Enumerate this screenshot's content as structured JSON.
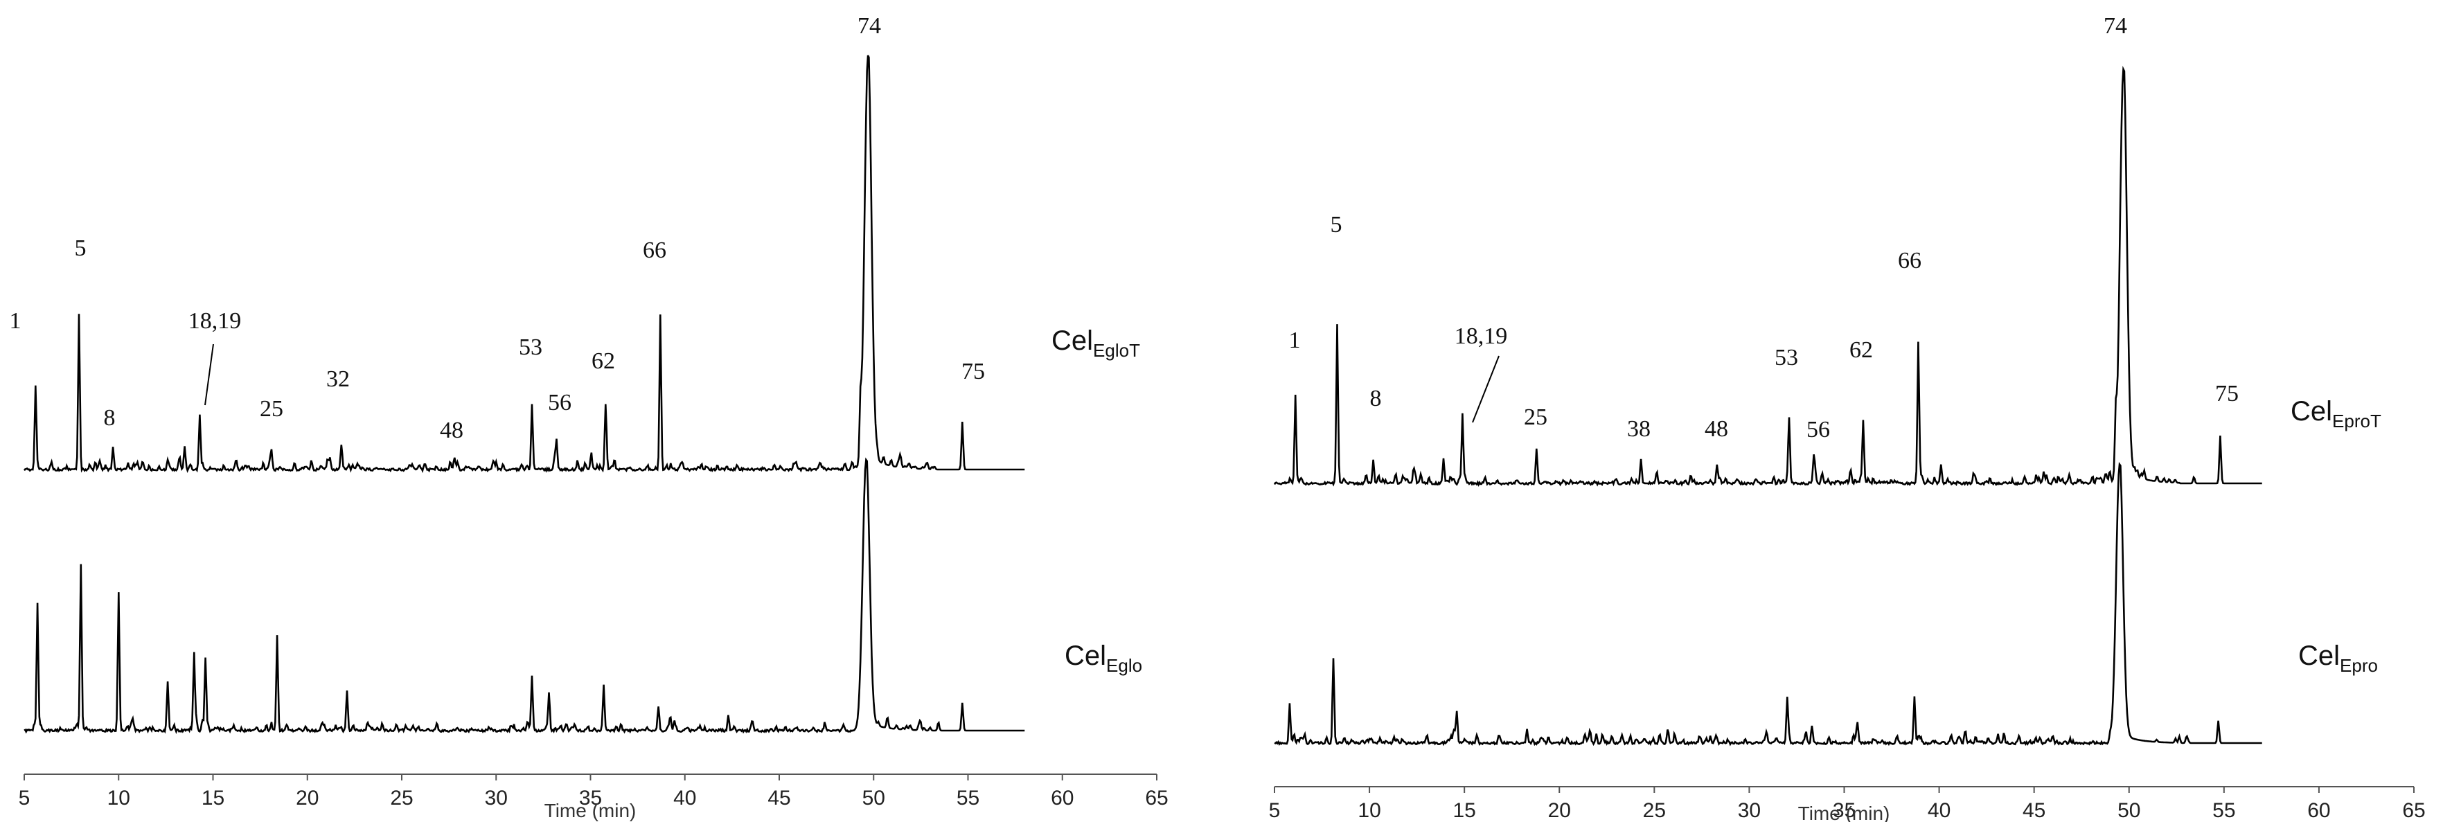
{
  "chart_data": [
    {
      "type": "line",
      "panel": "left",
      "xlabel": "Time (min)",
      "xlim": [
        5,
        65
      ],
      "x_ticks": [
        5,
        10,
        15,
        20,
        25,
        30,
        35,
        40,
        45,
        50,
        55,
        60,
        65
      ],
      "series": [
        {
          "name": "CelEgloT",
          "label_main": "Cel",
          "label_sub": "EgloT",
          "peaks": [
            {
              "x": 5.6,
              "y": 0.105
            },
            {
              "x": 7.9,
              "y": 0.195
            },
            {
              "x": 9.7,
              "y": 0.028
            },
            {
              "x": 13.5,
              "y": 0.03
            },
            {
              "x": 14.3,
              "y": 0.07
            },
            {
              "x": 18.1,
              "y": 0.025
            },
            {
              "x": 21.2,
              "y": 0.016
            },
            {
              "x": 21.8,
              "y": 0.03
            },
            {
              "x": 27.8,
              "y": 0.016
            },
            {
              "x": 31.9,
              "y": 0.083
            },
            {
              "x": 33.2,
              "y": 0.035
            },
            {
              "x": 35.8,
              "y": 0.08
            },
            {
              "x": 38.7,
              "y": 0.195
            },
            {
              "x": 49.3,
              "y": 0.06
            },
            {
              "x": 49.7,
              "y": 0.52
            },
            {
              "x": 54.7,
              "y": 0.06
            }
          ]
        },
        {
          "name": "CelEglo",
          "label_main": "Cel",
          "label_sub": "Eglo",
          "peaks": [
            {
              "x": 5.7,
              "y": 0.16
            },
            {
              "x": 8.0,
              "y": 0.21
            },
            {
              "x": 10.0,
              "y": 0.175
            },
            {
              "x": 12.6,
              "y": 0.06
            },
            {
              "x": 14.0,
              "y": 0.095
            },
            {
              "x": 14.6,
              "y": 0.09
            },
            {
              "x": 18.4,
              "y": 0.12
            },
            {
              "x": 22.1,
              "y": 0.05
            },
            {
              "x": 31.9,
              "y": 0.07
            },
            {
              "x": 32.8,
              "y": 0.045
            },
            {
              "x": 35.7,
              "y": 0.055
            },
            {
              "x": 38.6,
              "y": 0.03
            },
            {
              "x": 42.3,
              "y": 0.02
            },
            {
              "x": 49.6,
              "y": 0.34
            },
            {
              "x": 54.7,
              "y": 0.035
            }
          ]
        }
      ],
      "annotations": [
        "1",
        "5",
        "8",
        "18,19",
        "25",
        "32",
        "48",
        "53",
        "56",
        "62",
        "66",
        "74",
        "75"
      ]
    },
    {
      "type": "line",
      "panel": "right",
      "xlabel": "Time (min)",
      "xlim": [
        5,
        65
      ],
      "x_ticks": [
        5,
        10,
        15,
        20,
        25,
        30,
        35,
        40,
        45,
        50,
        55,
        60,
        65
      ],
      "series": [
        {
          "name": "CelEproT",
          "label_main": "Cel",
          "label_sub": "EproT",
          "peaks": [
            {
              "x": 6.1,
              "y": 0.11
            },
            {
              "x": 8.3,
              "y": 0.2
            },
            {
              "x": 10.2,
              "y": 0.03
            },
            {
              "x": 13.9,
              "y": 0.03
            },
            {
              "x": 14.9,
              "y": 0.085
            },
            {
              "x": 18.8,
              "y": 0.045
            },
            {
              "x": 24.3,
              "y": 0.03
            },
            {
              "x": 28.3,
              "y": 0.025
            },
            {
              "x": 32.1,
              "y": 0.083
            },
            {
              "x": 33.4,
              "y": 0.035
            },
            {
              "x": 36.0,
              "y": 0.08
            },
            {
              "x": 38.9,
              "y": 0.175
            },
            {
              "x": 40.1,
              "y": 0.025
            },
            {
              "x": 49.3,
              "y": 0.06
            },
            {
              "x": 49.7,
              "y": 0.52
            },
            {
              "x": 54.8,
              "y": 0.06
            }
          ]
        },
        {
          "name": "CelEpro",
          "label_main": "Cel",
          "label_sub": "Epro",
          "peaks": [
            {
              "x": 5.8,
              "y": 0.05
            },
            {
              "x": 8.1,
              "y": 0.105
            },
            {
              "x": 14.6,
              "y": 0.035
            },
            {
              "x": 18.3,
              "y": 0.018
            },
            {
              "x": 32.0,
              "y": 0.05
            },
            {
              "x": 33.3,
              "y": 0.022
            },
            {
              "x": 35.7,
              "y": 0.025
            },
            {
              "x": 38.7,
              "y": 0.06
            },
            {
              "x": 49.5,
              "y": 0.35
            },
            {
              "x": 54.7,
              "y": 0.028
            }
          ]
        }
      ],
      "annotations": [
        "1",
        "5",
        "8",
        "18,19",
        "25",
        "38",
        "48",
        "53",
        "56",
        "62",
        "66",
        "74",
        "75"
      ]
    }
  ]
}
